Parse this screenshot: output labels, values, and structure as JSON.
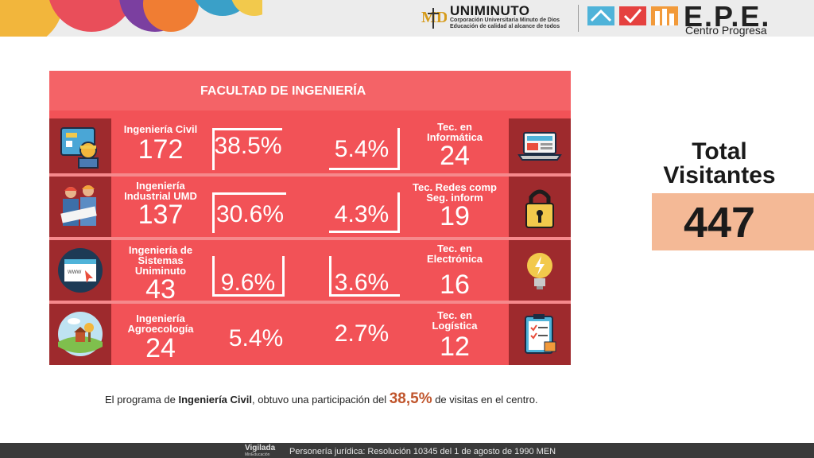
{
  "header": {
    "uni_name": "UNIMINUTO",
    "uni_sub1": "Corporación Universitaria Minuto de Dios",
    "uni_sub2": "Educación de calidad al alcance de todos",
    "epe_name": "E.P.E.",
    "epe_sub": "Centro Progresa"
  },
  "infographic": {
    "title": "FACULTAD DE INGENIERÍA",
    "left": [
      {
        "label": [
          "Ingeniería Civil"
        ],
        "count": "172",
        "percent": "38.5%",
        "icon": "engineer-icon"
      },
      {
        "label": [
          "Ingeniería",
          "Industrial UMD"
        ],
        "count": "137",
        "percent": "30.6%",
        "icon": "industrial-team-icon"
      },
      {
        "label": [
          "Ingeniería de",
          "Sistemas",
          "Uniminuto"
        ],
        "count": "43",
        "percent": "9.6%",
        "icon": "browser-window-icon"
      },
      {
        "label": [
          "Ingeniería",
          "Agroecología"
        ],
        "count": "24",
        "percent": "5.4%",
        "icon": "farm-landscape-icon"
      }
    ],
    "right": [
      {
        "label": [
          "Tec. en",
          "Informática"
        ],
        "count": "24",
        "percent": "5.4%",
        "icon": "laptop-icon"
      },
      {
        "label": [
          "Tec. Redes comp",
          "Seg. inform"
        ],
        "count": "19",
        "percent": "4.3%",
        "icon": "padlock-icon"
      },
      {
        "label": [
          "Tec. en",
          "Electrónica"
        ],
        "count": "16",
        "percent": "3.6%",
        "icon": "lightbulb-icon"
      },
      {
        "label": [
          "Tec. en",
          "Logística"
        ],
        "count": "12",
        "percent": "2.7%",
        "icon": "clipboard-checklist-icon"
      }
    ]
  },
  "total": {
    "label_1": "Total",
    "label_2": "Visitantes",
    "value": "447"
  },
  "note": {
    "pre": "El programa de ",
    "program": "Ingeniería Civil",
    "mid": ", obtuvo una participación del ",
    "highlight": "38,5%",
    "post": " de visitas en el centro."
  },
  "footer": {
    "vigilada": "Vigilada",
    "vigilada_sub": "MinEducación",
    "text": "Personería jurídica: Resolución 10345 del 1 de agosto de 1990 MEN"
  },
  "colors": {
    "panel": "#f25257",
    "icon_bg": "#9e2a2d",
    "total_box": "#f4b996",
    "highlight": "#c0552c"
  }
}
